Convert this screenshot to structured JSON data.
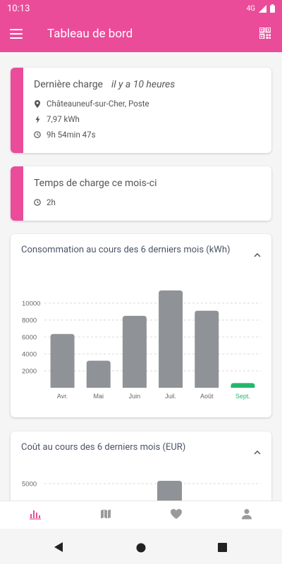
{
  "status": {
    "time": "10:13",
    "network": "4G"
  },
  "appbar": {
    "title": "Tableau de bord"
  },
  "last_charge": {
    "title": "Dernière charge",
    "ago": "il y a 10 heures",
    "location": "Châteauneuf-sur-Cher, Poste",
    "energy": "7,97 kWh",
    "duration": "9h 54min 47s"
  },
  "month_charge": {
    "title": "Temps de charge ce mois-ci",
    "time": "2h"
  },
  "consumption_card": {
    "title": "Consommation au cours des 6 derniers mois (kWh)"
  },
  "cost_card": {
    "title": "Coût au cours des 6 derniers mois (EUR)"
  },
  "chart_data": [
    {
      "type": "bar",
      "categories": [
        "Avr.",
        "Mai",
        "Juin",
        "Juil.",
        "Août",
        "Sept."
      ],
      "values": [
        6350,
        3200,
        8500,
        11500,
        9100,
        550
      ],
      "ylabel": "",
      "yticks": [
        2000,
        4000,
        6000,
        8000,
        10000
      ],
      "ylim": [
        0,
        12000
      ],
      "highlight_index": 5,
      "colors": {
        "bar": "#8f9296",
        "highlight": "#22b86a"
      }
    },
    {
      "type": "bar",
      "yticks": [
        5000
      ],
      "partial": true
    }
  ],
  "colors": {
    "accent": "#ea4c9a",
    "nav_active": "#ea4c9a",
    "nav_inactive": "#9a9a9a"
  }
}
